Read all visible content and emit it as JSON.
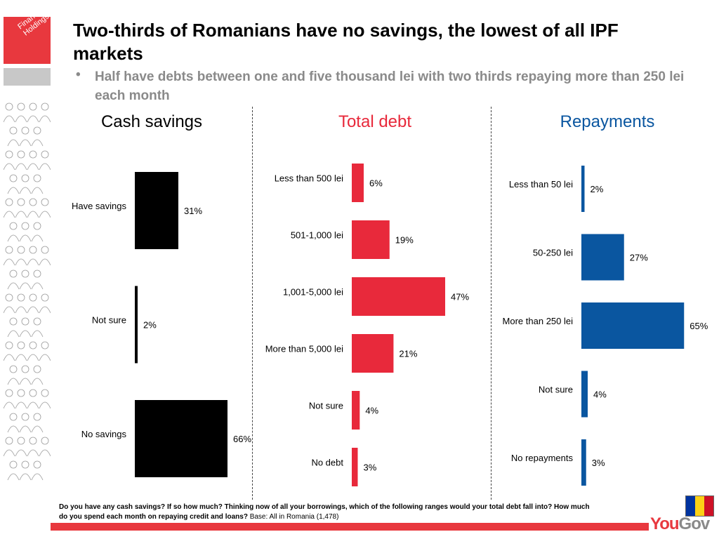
{
  "logo": {
    "line1": "Financial",
    "line2": "Holdings"
  },
  "title": "Two-thirds of Romanians have no savings, the lowest of all IPF markets",
  "subtitle": "Half have debts between one and five thousand lei with two thirds repaying more than 250 lei each month",
  "bullet": "•",
  "colors": {
    "savings": "#000000",
    "debt": "#e8293b",
    "repayments": "#0a56a0",
    "accent_red": "#e8383e"
  },
  "chart_data": [
    {
      "type": "bar",
      "title": "Cash savings",
      "categories": [
        "Have savings",
        "Not sure",
        "No savings"
      ],
      "values": [
        31,
        2,
        66
      ],
      "value_labels": [
        "31%",
        "2%",
        "66%"
      ]
    },
    {
      "type": "bar",
      "title": "Total debt",
      "categories": [
        "Less than 500 lei",
        "501-1,000 lei",
        "1,001-5,000 lei",
        "More than 5,000 lei",
        "Not sure",
        "No debt"
      ],
      "values": [
        6,
        19,
        47,
        21,
        4,
        3
      ],
      "value_labels": [
        "6%",
        "19%",
        "47%",
        "21%",
        "4%",
        "3%"
      ]
    },
    {
      "type": "bar",
      "title": "Repayments",
      "categories": [
        "Less than 50 lei",
        "50-250 lei",
        "More than 250 lei",
        "Not sure",
        "No repayments"
      ],
      "values": [
        2,
        27,
        65,
        4,
        3
      ],
      "value_labels": [
        "2%",
        "27%",
        "65%",
        "4%",
        "3%"
      ]
    }
  ],
  "footer": {
    "question": "Do you have any cash savings? If so how much? Thinking now of all your borrowings, which of the following ranges would your total debt fall into? How much do you spend each month on repaying credit and loans?",
    "base": "Base: All in Romania (1,478)"
  },
  "flag_colors": [
    "#0033a0",
    "#fcd116",
    "#ce1126"
  ],
  "brand": {
    "you": "You",
    "gov": "Gov"
  }
}
